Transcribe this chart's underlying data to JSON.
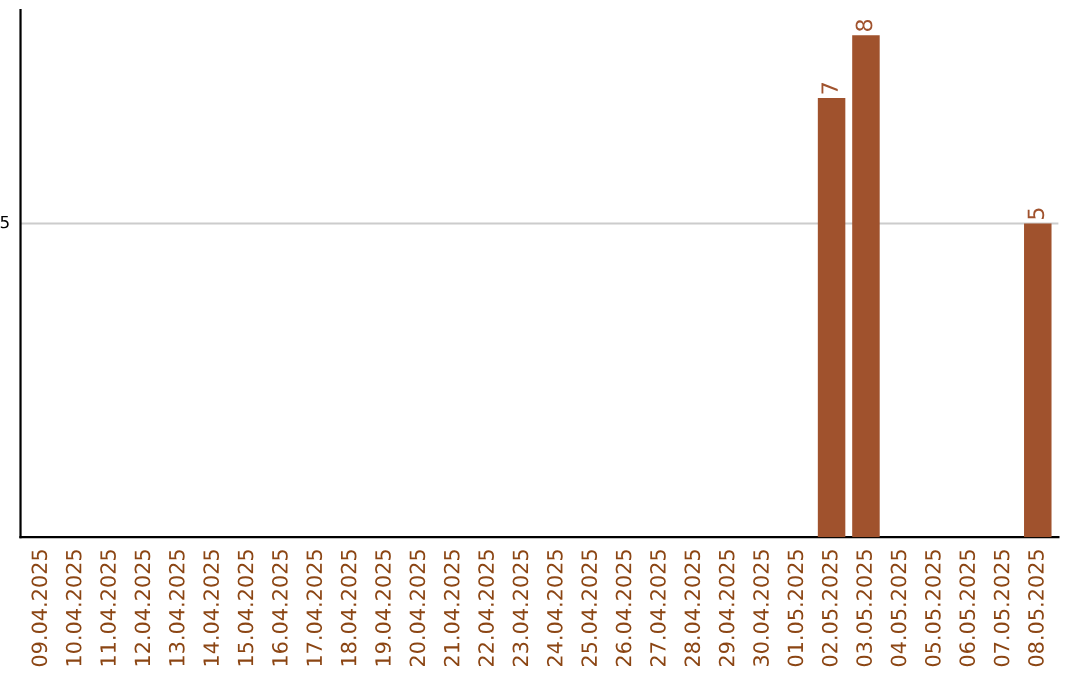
{
  "chart_data": {
    "type": "bar",
    "categories": [
      "09.04.2025",
      "10.04.2025",
      "11.04.2025",
      "12.04.2025",
      "13.04.2025",
      "14.04.2025",
      "15.04.2025",
      "16.04.2025",
      "17.04.2025",
      "18.04.2025",
      "19.04.2025",
      "20.04.2025",
      "21.04.2025",
      "22.04.2025",
      "23.04.2025",
      "24.04.2025",
      "25.04.2025",
      "26.04.2025",
      "27.04.2025",
      "28.04.2025",
      "29.04.2025",
      "30.04.2025",
      "01.05.2025",
      "02.05.2025",
      "03.05.2025",
      "04.05.2025",
      "05.05.2025",
      "06.05.2025",
      "07.05.2025",
      "08.05.2025"
    ],
    "values": [
      null,
      null,
      null,
      null,
      null,
      null,
      null,
      null,
      null,
      null,
      null,
      null,
      null,
      null,
      null,
      null,
      null,
      null,
      null,
      null,
      null,
      null,
      null,
      7,
      8,
      null,
      null,
      null,
      null,
      5
    ],
    "value_labels": [
      null,
      null,
      null,
      null,
      null,
      null,
      null,
      null,
      null,
      null,
      null,
      null,
      null,
      null,
      null,
      null,
      null,
      null,
      null,
      null,
      null,
      null,
      null,
      "7",
      "8",
      null,
      null,
      null,
      null,
      "5"
    ],
    "color": "#a0522d",
    "ylim": [
      0,
      8.4
    ],
    "ref_lines": [
      {
        "axis": "y",
        "value": 5,
        "label": "5",
        "color": "#cccccc"
      }
    ]
  }
}
